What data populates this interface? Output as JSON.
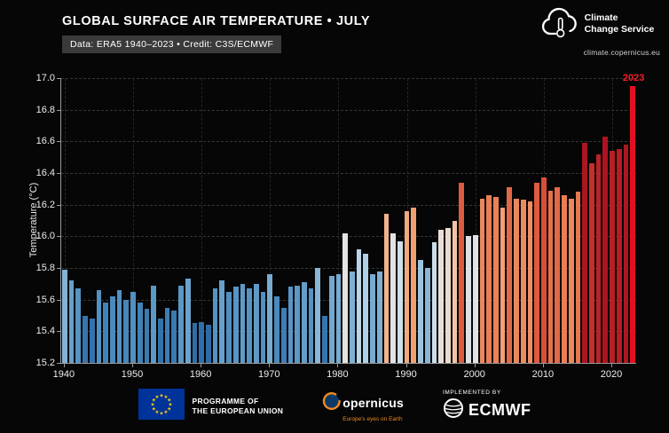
{
  "header": {
    "title": "GLOBAL SURFACE AIR TEMPERATURE • JULY",
    "subtitle": "Data: ERA5 1940–2023 • Credit: C3S/ECMWF"
  },
  "logo": {
    "name_line1": "Climate",
    "name_line2": "Change Service",
    "url": "climate.copernicus.eu"
  },
  "chart_data": {
    "type": "bar",
    "title": "GLOBAL SURFACE AIR TEMPERATURE • JULY",
    "xlabel": "",
    "ylabel": "Temperature (°C)",
    "ylim": [
      15.2,
      17.0
    ],
    "ytick_step": 0.2,
    "grid": true,
    "xticks": [
      1940,
      1950,
      1960,
      1970,
      1980,
      1990,
      2000,
      2010,
      2020
    ],
    "years": [
      1940,
      1941,
      1942,
      1943,
      1944,
      1945,
      1946,
      1947,
      1948,
      1949,
      1950,
      1951,
      1952,
      1953,
      1954,
      1955,
      1956,
      1957,
      1958,
      1959,
      1960,
      1961,
      1962,
      1963,
      1964,
      1965,
      1966,
      1967,
      1968,
      1969,
      1970,
      1971,
      1972,
      1973,
      1974,
      1975,
      1976,
      1977,
      1978,
      1979,
      1980,
      1981,
      1982,
      1983,
      1984,
      1985,
      1986,
      1987,
      1988,
      1989,
      1990,
      1991,
      1992,
      1993,
      1994,
      1995,
      1996,
      1997,
      1998,
      1999,
      2000,
      2001,
      2002,
      2003,
      2004,
      2005,
      2006,
      2007,
      2008,
      2009,
      2010,
      2011,
      2012,
      2013,
      2014,
      2015,
      2016,
      2017,
      2018,
      2019,
      2020,
      2021,
      2022,
      2023
    ],
    "values": [
      15.79,
      15.72,
      15.67,
      15.5,
      15.48,
      15.66,
      15.58,
      15.62,
      15.66,
      15.6,
      15.65,
      15.58,
      15.54,
      15.69,
      15.48,
      15.55,
      15.53,
      15.69,
      15.73,
      15.45,
      15.46,
      15.44,
      15.67,
      15.72,
      15.65,
      15.68,
      15.7,
      15.67,
      15.7,
      15.65,
      15.76,
      15.62,
      15.55,
      15.68,
      15.69,
      15.71,
      15.67,
      15.8,
      15.5,
      15.75,
      15.76,
      16.02,
      15.78,
      15.92,
      15.89,
      15.76,
      15.78,
      16.14,
      16.02,
      15.97,
      16.16,
      16.18,
      15.85,
      15.8,
      15.96,
      16.04,
      16.05,
      16.1,
      16.34,
      16.0,
      16.01,
      16.24,
      16.26,
      16.25,
      16.18,
      16.31,
      16.24,
      16.23,
      16.22,
      16.34,
      16.37,
      16.29,
      16.31,
      16.26,
      16.24,
      16.28,
      16.59,
      16.46,
      16.52,
      16.63,
      16.54,
      16.55,
      16.58,
      16.95
    ],
    "annotation": {
      "text": "2023",
      "color": "#f41e28"
    },
    "colormap": [
      {
        "v": 15.44,
        "c": "#2e6ba6"
      },
      {
        "v": 15.56,
        "c": "#3d7fb5"
      },
      {
        "v": 15.68,
        "c": "#5795c4"
      },
      {
        "v": 15.78,
        "c": "#7fb0d3"
      },
      {
        "v": 15.88,
        "c": "#aacde3"
      },
      {
        "v": 15.97,
        "c": "#cfdfeb"
      },
      {
        "v": 16.03,
        "c": "#e8e4e0"
      },
      {
        "v": 16.1,
        "c": "#f2c4a4"
      },
      {
        "v": 16.18,
        "c": "#f0a071"
      },
      {
        "v": 16.27,
        "c": "#e87a52"
      },
      {
        "v": 16.36,
        "c": "#d9533a"
      },
      {
        "v": 16.46,
        "c": "#c42f28"
      },
      {
        "v": 16.6,
        "c": "#a81420"
      },
      {
        "v": 16.95,
        "c": "#e3101f"
      }
    ]
  },
  "footer": {
    "eu_label_line1": "PROGRAMME OF",
    "eu_label_line2": "THE EUROPEAN UNION",
    "copernicus_text": "opernicus",
    "copernicus_tagline": "Europe's eyes on Earth",
    "implemented_by": "IMPLEMENTED BY",
    "ecmwf": "ECMWF"
  },
  "colors": {
    "background": "#060606",
    "eu_flag_blue": "#003399",
    "eu_star_yellow": "#ffcc00",
    "copernicus_orange": "#f08b1f",
    "axis_gray": "#9a9a9a"
  }
}
